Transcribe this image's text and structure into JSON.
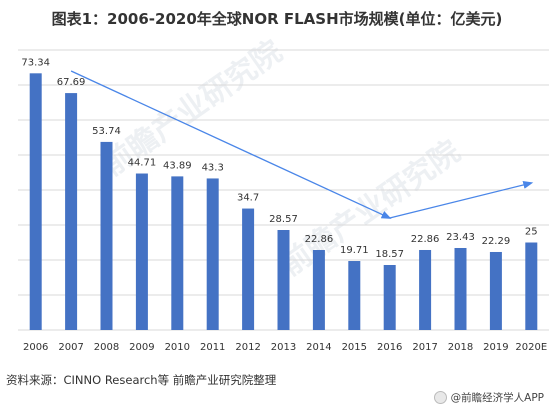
{
  "title": "图表1：2006-2020年全球NOR FLASH市场规模(单位：亿美元)",
  "source": "资料来源：CINNO Research等 前瞻产业研究院整理",
  "footer_brand": "@前瞻经济学人APP",
  "watermark_text": "前瞻产业研究院",
  "colors": {
    "bar": "#4472c4",
    "trend_arrow": "#4a86e8",
    "grid": "#d9d9d9",
    "text": "#333333"
  },
  "chart_data": {
    "type": "bar",
    "title": "图表1：2006-2020年全球NOR FLASH市场规模(单位：亿美元)",
    "xlabel": "",
    "ylabel": "",
    "categories": [
      "2006",
      "2007",
      "2008",
      "2009",
      "2010",
      "2011",
      "2012",
      "2013",
      "2014",
      "2015",
      "2016",
      "2017",
      "2018",
      "2019",
      "2020E"
    ],
    "values": [
      73.34,
      67.69,
      53.74,
      44.71,
      43.89,
      43.3,
      34.7,
      28.57,
      22.86,
      19.71,
      18.57,
      22.86,
      23.43,
      22.29,
      25
    ],
    "data_labels": [
      "73.34",
      "67.69",
      "53.74",
      "44.71",
      "43.89",
      "43.3",
      "34.7",
      "28.57",
      "22.86",
      "19.71",
      "18.57",
      "22.86",
      "23.43",
      "22.29",
      "25"
    ],
    "ylim": [
      0,
      80
    ],
    "grid": true,
    "legend": "none",
    "annotations": [
      {
        "type": "arrow",
        "from_category": "2007",
        "from_value": 74,
        "to_category": "2016",
        "to_value": 32
      },
      {
        "type": "arrow",
        "from_category": "2016",
        "from_value": 32,
        "to_category": "2020E",
        "to_value": 42
      }
    ]
  }
}
